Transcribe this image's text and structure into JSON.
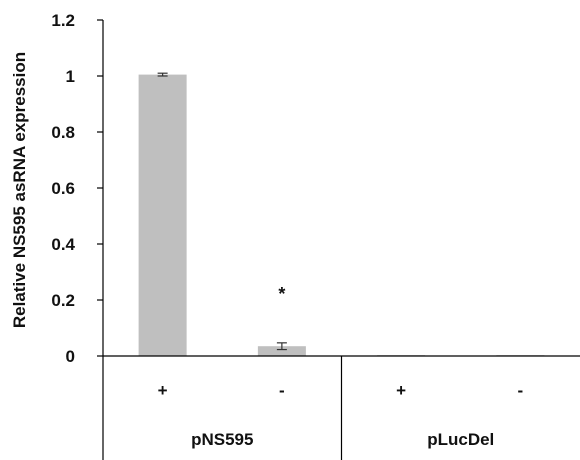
{
  "chart_data": {
    "type": "bar",
    "ylabel": "Relative NS595 asRNA expression",
    "ylim": [
      0,
      1.2
    ],
    "yticks": [
      "0",
      "0.2",
      "0.4",
      "0.6",
      "0.8",
      "1",
      "1.2"
    ],
    "categories": [
      "+",
      "-",
      "+",
      "-"
    ],
    "groups": [
      {
        "label": "pNS595",
        "span": [
          0,
          1
        ]
      },
      {
        "label": "pLucDel",
        "span": [
          2,
          3
        ]
      }
    ],
    "values": [
      1.005,
      0.035,
      0.003,
      0.003
    ],
    "errors": [
      0.005,
      0.012,
      0,
      0
    ],
    "annotations": [
      {
        "index": 1,
        "text": "*"
      }
    ],
    "bar_color": "#bfbfbf",
    "grid": false
  }
}
